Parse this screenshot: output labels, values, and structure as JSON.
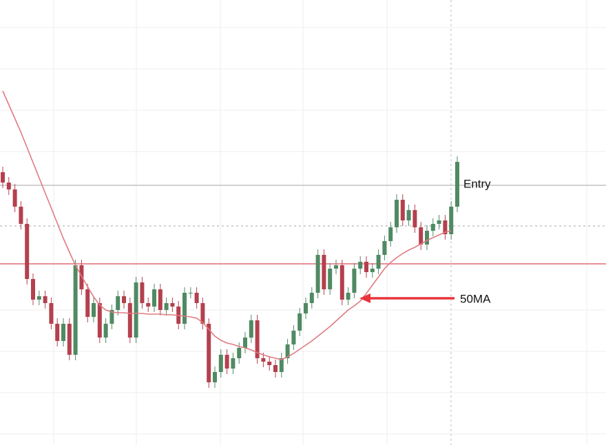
{
  "chart_data": {
    "type": "candlestick",
    "ylim": [
      0,
      646
    ],
    "up_color": "#4f8a63",
    "down_color": "#b4404e",
    "ma_color": "#e07a80",
    "open": [
      396,
      381,
      371,
      346,
      321,
      241,
      211,
      216,
      206,
      176,
      151,
      176,
      131,
      261,
      226,
      186,
      206,
      156,
      176,
      196,
      216,
      206,
      156,
      236,
      206,
      201,
      226,
      196,
      206,
      201,
      176,
      221,
      221,
      206,
      176,
      91,
      106,
      131,
      111,
      126,
      141,
      156,
      181,
      126,
      121,
      116,
      106,
      126,
      146,
      166,
      191,
      206,
      221,
      276,
      226,
      256,
      261,
      211,
      221,
      256,
      266,
      251,
      256,
      276,
      296,
      316,
      356,
      326,
      341,
      316,
      291,
      311,
      321,
      326,
      306,
      346
    ],
    "high": [
      404,
      389,
      379,
      354,
      329,
      249,
      224,
      224,
      214,
      184,
      184,
      184,
      269,
      269,
      234,
      214,
      214,
      184,
      204,
      224,
      224,
      214,
      244,
      244,
      214,
      234,
      234,
      214,
      214,
      209,
      229,
      229,
      229,
      214,
      184,
      114,
      139,
      139,
      134,
      149,
      164,
      189,
      189,
      134,
      129,
      124,
      134,
      154,
      174,
      199,
      214,
      229,
      284,
      284,
      264,
      269,
      269,
      229,
      264,
      274,
      274,
      264,
      284,
      304,
      324,
      364,
      364,
      349,
      349,
      324,
      319,
      329,
      334,
      334,
      354,
      419
    ],
    "low": [
      373,
      363,
      338,
      313,
      233,
      203,
      203,
      198,
      168,
      143,
      143,
      123,
      123,
      218,
      178,
      178,
      148,
      148,
      168,
      188,
      198,
      148,
      148,
      198,
      193,
      193,
      188,
      188,
      193,
      168,
      168,
      213,
      198,
      168,
      83,
      83,
      98,
      103,
      103,
      118,
      133,
      148,
      118,
      113,
      108,
      98,
      98,
      118,
      138,
      158,
      183,
      198,
      213,
      218,
      218,
      248,
      203,
      203,
      213,
      248,
      243,
      243,
      248,
      268,
      288,
      308,
      318,
      318,
      308,
      283,
      283,
      303,
      313,
      298,
      298,
      338
    ],
    "close": [
      381,
      371,
      346,
      321,
      241,
      211,
      216,
      206,
      176,
      151,
      176,
      131,
      261,
      226,
      186,
      206,
      156,
      176,
      196,
      216,
      206,
      156,
      236,
      206,
      201,
      226,
      196,
      206,
      201,
      176,
      221,
      221,
      206,
      176,
      91,
      106,
      131,
      111,
      126,
      141,
      156,
      181,
      126,
      121,
      116,
      106,
      126,
      146,
      166,
      191,
      206,
      221,
      276,
      226,
      256,
      261,
      211,
      221,
      256,
      266,
      251,
      256,
      276,
      296,
      316,
      356,
      326,
      341,
      316,
      291,
      311,
      321,
      326,
      306,
      346,
      411
    ],
    "ma": [
      514,
      494,
      474,
      454,
      432,
      410,
      388,
      366,
      344,
      322,
      300,
      280,
      261,
      245,
      230,
      215,
      203,
      196,
      193,
      192,
      192,
      191,
      191,
      191,
      190,
      190,
      190,
      189,
      189,
      188,
      187,
      186,
      184,
      178,
      168,
      158,
      152,
      148,
      146,
      143,
      141,
      138,
      134,
      131,
      128,
      126,
      124,
      128,
      133,
      139,
      145,
      151,
      158,
      165,
      172,
      180,
      188,
      196,
      202,
      209,
      220,
      232,
      244,
      256,
      265,
      272,
      278,
      283,
      287,
      292,
      297,
      301,
      305,
      309,
      311,
      null
    ],
    "levels": [
      {
        "value": 377,
        "color": "#c4c4c4",
        "style": "solid"
      },
      {
        "value": 318,
        "color": "#b8b8b8",
        "style": "dotted"
      },
      {
        "value": 263,
        "color": "#e26a72",
        "style": "solid"
      }
    ],
    "annotations": [
      {
        "text": "Entry"
      },
      {
        "text": "50MA"
      }
    ]
  }
}
